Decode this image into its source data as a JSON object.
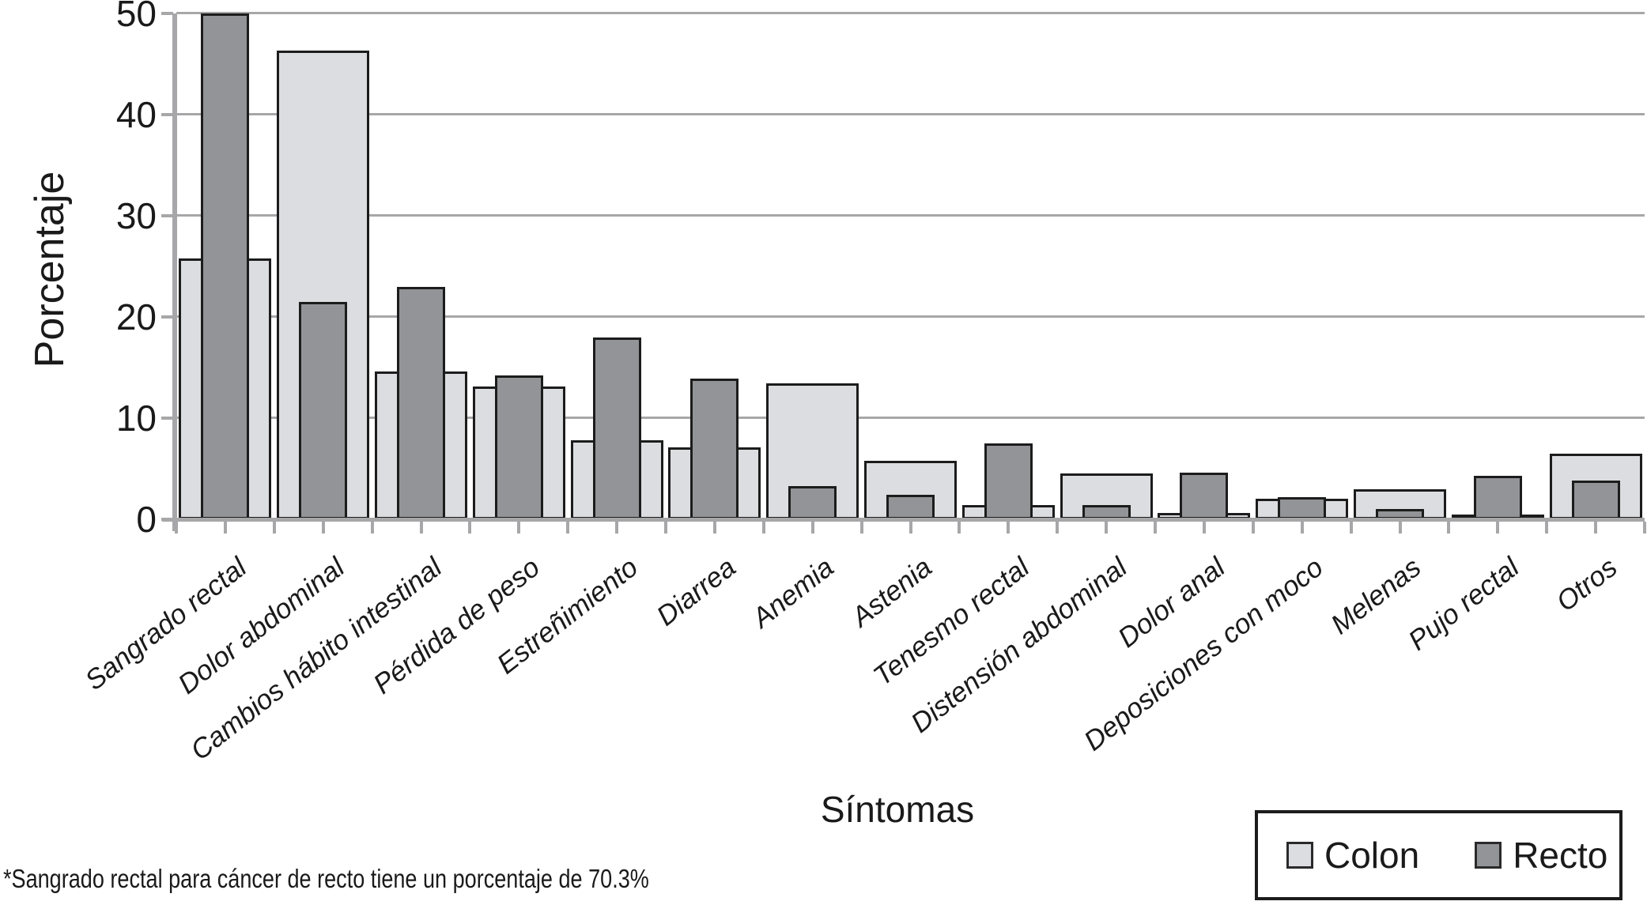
{
  "chart_data": {
    "type": "bar",
    "title": "",
    "xlabel": "Síntomas",
    "ylabel": "Porcentaje",
    "ylim": [
      0,
      50
    ],
    "yticks": [
      0,
      10,
      20,
      30,
      40,
      50
    ],
    "grid": "horizontal",
    "legend_position": "bottom-right",
    "bar_style": "overlapped (Recto narrower bar drawn centered in front of wide Colon bar)",
    "categories": [
      "Sangrado rectal",
      "Dolor abdominal",
      "Cambios hábito intestinal",
      "Pérdida de peso",
      "Estreñimiento",
      "Diarrea",
      "Anemia",
      "Astenia",
      "Tenesmo rectal",
      "Distensión abdominal",
      "Dolor anal",
      "Deposiciones con moco",
      "Melenas",
      "Pujo rectal",
      "Otros"
    ],
    "series": [
      {
        "name": "Colon",
        "color": "#dbdde0",
        "values": [
          25.8,
          46.3,
          14.6,
          13.1,
          7.8,
          7.1,
          13.4,
          5.8,
          1.4,
          4.5,
          0.6,
          2.0,
          3.0,
          0.3,
          6.5
        ]
      },
      {
        "name": "Recto",
        "color": "#929497",
        "values": [
          70.3,
          21.5,
          23.0,
          14.2,
          18.0,
          13.9,
          3.3,
          2.4,
          7.5,
          1.4,
          4.6,
          2.2,
          1.0,
          4.3,
          3.8
        ]
      }
    ],
    "clipped_note": "Recto bar for Sangrado rectal is clipped at the 50 axis maximum"
  },
  "legend": {
    "items": [
      {
        "label": "Colon",
        "color": "#dbdde0"
      },
      {
        "label": "Recto",
        "color": "#929497"
      }
    ]
  },
  "footnote": "*Sangrado rectal para cáncer de recto tiene un porcentaje de 70.3%"
}
